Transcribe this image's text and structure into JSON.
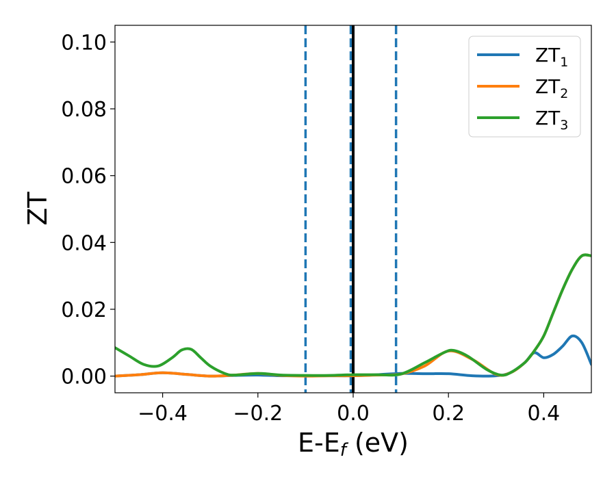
{
  "chart_data": {
    "type": "line",
    "title": "",
    "xlabel": "E-E",
    "xlabel_sub": "f",
    "xlabel_unit": " (eV)",
    "ylabel": "ZT",
    "xlim": [
      -0.5,
      0.5
    ],
    "ylim": [
      -0.005,
      0.105
    ],
    "xticks": [
      -0.4,
      -0.2,
      0.0,
      0.2,
      0.4
    ],
    "xtick_labels": [
      "−0.4",
      "−0.2",
      "0.0",
      "0.2",
      "0.4"
    ],
    "yticks": [
      0.0,
      0.02,
      0.04,
      0.06,
      0.08,
      0.1
    ],
    "ytick_labels": [
      "0.00",
      "0.02",
      "0.04",
      "0.06",
      "0.08",
      "0.10"
    ],
    "grid": false,
    "legend_position": "top-right",
    "vertical_lines": [
      {
        "x": -0.1,
        "style": "dashed",
        "color": "#1f77b4"
      },
      {
        "x": -0.005,
        "style": "dashed",
        "color": "#1f77b4"
      },
      {
        "x": 0.09,
        "style": "dashed",
        "color": "#1f77b4"
      },
      {
        "x": 0.0,
        "style": "solid",
        "color": "#000000"
      }
    ],
    "series": [
      {
        "name": "ZT",
        "name_sub": "1",
        "color": "#1f77b4",
        "x": [
          -0.5,
          -0.45,
          -0.4,
          -0.35,
          -0.3,
          -0.25,
          -0.2,
          -0.15,
          -0.1,
          -0.05,
          0.0,
          0.05,
          0.1,
          0.15,
          0.2,
          0.25,
          0.3,
          0.33,
          0.36,
          0.38,
          0.4,
          0.42,
          0.44,
          0.46,
          0.48,
          0.5
        ],
        "y": [
          0.0,
          0.0004,
          0.001,
          0.0005,
          0.0,
          0.0002,
          0.0003,
          0.0001,
          0.0001,
          0.0001,
          0.0001,
          0.0004,
          0.0008,
          0.0007,
          0.0007,
          0.0001,
          0.0001,
          0.001,
          0.004,
          0.007,
          0.0055,
          0.0065,
          0.009,
          0.012,
          0.01,
          0.0035
        ]
      },
      {
        "name": "ZT",
        "name_sub": "2",
        "color": "#ff7f0e",
        "x": [
          -0.5,
          -0.45,
          -0.4,
          -0.35,
          -0.3,
          -0.25,
          -0.2,
          -0.15,
          -0.1,
          -0.05,
          0.0,
          0.05,
          0.1,
          0.15,
          0.2,
          0.25,
          0.3,
          0.33,
          0.36,
          0.38,
          0.4,
          0.42,
          0.44,
          0.46,
          0.48,
          0.5
        ],
        "y": [
          0.0,
          0.0004,
          0.001,
          0.0005,
          0.0,
          0.0003,
          0.0008,
          0.0002,
          0.0,
          0.0001,
          0.0001,
          0.0003,
          0.0006,
          0.003,
          0.0075,
          0.005,
          0.0005,
          0.001,
          0.004,
          0.0075,
          0.012,
          0.019,
          0.026,
          0.032,
          0.036,
          0.036
        ]
      },
      {
        "name": "ZT",
        "name_sub": "3",
        "color": "#2ca02c",
        "x": [
          -0.5,
          -0.47,
          -0.44,
          -0.41,
          -0.38,
          -0.36,
          -0.34,
          -0.32,
          -0.3,
          -0.27,
          -0.25,
          -0.2,
          -0.15,
          -0.1,
          -0.05,
          0.0,
          0.05,
          0.1,
          0.15,
          0.19,
          0.21,
          0.24,
          0.28,
          0.31,
          0.33,
          0.36,
          0.38,
          0.4,
          0.42,
          0.44,
          0.46,
          0.48,
          0.5
        ],
        "y": [
          0.0085,
          0.006,
          0.0035,
          0.003,
          0.0055,
          0.0078,
          0.008,
          0.0055,
          0.003,
          0.0008,
          0.0003,
          0.0008,
          0.0003,
          0.0002,
          0.0002,
          0.0004,
          0.0004,
          0.0006,
          0.004,
          0.007,
          0.0077,
          0.006,
          0.002,
          0.0003,
          0.001,
          0.004,
          0.0075,
          0.012,
          0.019,
          0.026,
          0.032,
          0.036,
          0.036
        ]
      }
    ]
  }
}
